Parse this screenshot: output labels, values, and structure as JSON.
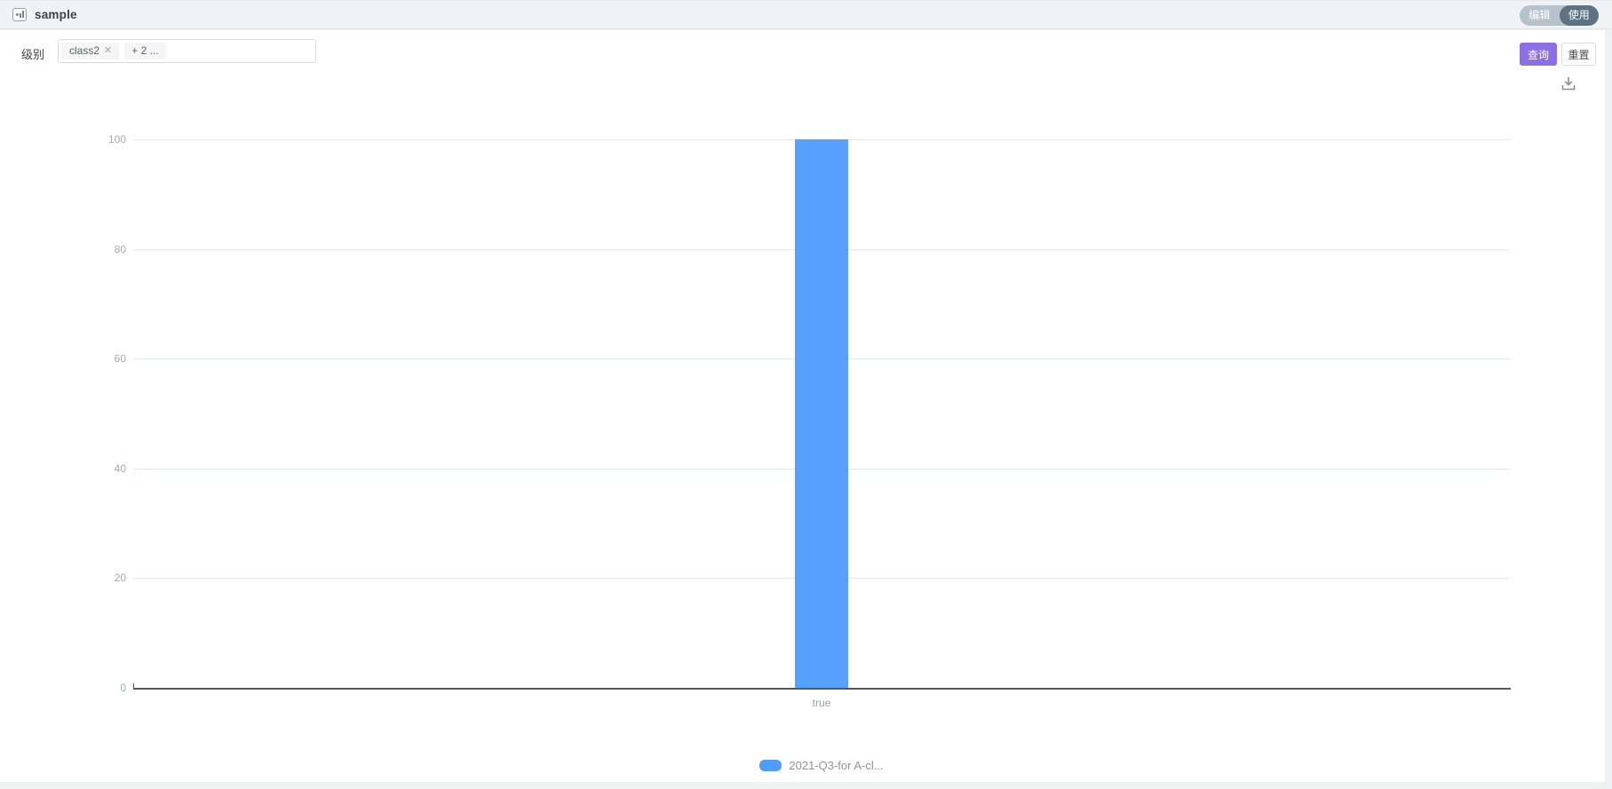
{
  "header": {
    "title": "sample",
    "mode_toggle": {
      "edit_label": "编辑",
      "use_label": "使用",
      "selected": "使用"
    }
  },
  "filters": {
    "label": "级别",
    "select": {
      "tags": [
        {
          "text": "class2",
          "close_glyph": "✕"
        }
      ],
      "more_tag": "+ 2 ..."
    }
  },
  "actions": {
    "query_label": "查询",
    "reset_label": "重置"
  },
  "toolbar": {
    "download_icon": "download-icon"
  },
  "colors": {
    "bar": "#57a0fc",
    "legend_swatch": "#4f9cfb",
    "primary_button": "#8c6fe4",
    "toggle_selected_bg": "#5d7384",
    "toggle_bg": "#b7c3cc"
  },
  "chart_data": {
    "type": "bar",
    "categories": [
      "true"
    ],
    "series": [
      {
        "name": "2021-Q3-for A-cl...",
        "values": [
          100
        ]
      }
    ],
    "title": "",
    "xlabel": "",
    "ylabel": "",
    "ylim": [
      0,
      100
    ],
    "yticks": [
      0,
      20,
      40,
      60,
      80,
      100
    ],
    "grid": true,
    "legend_position": "bottom",
    "bar_color": "#57a0fc"
  }
}
